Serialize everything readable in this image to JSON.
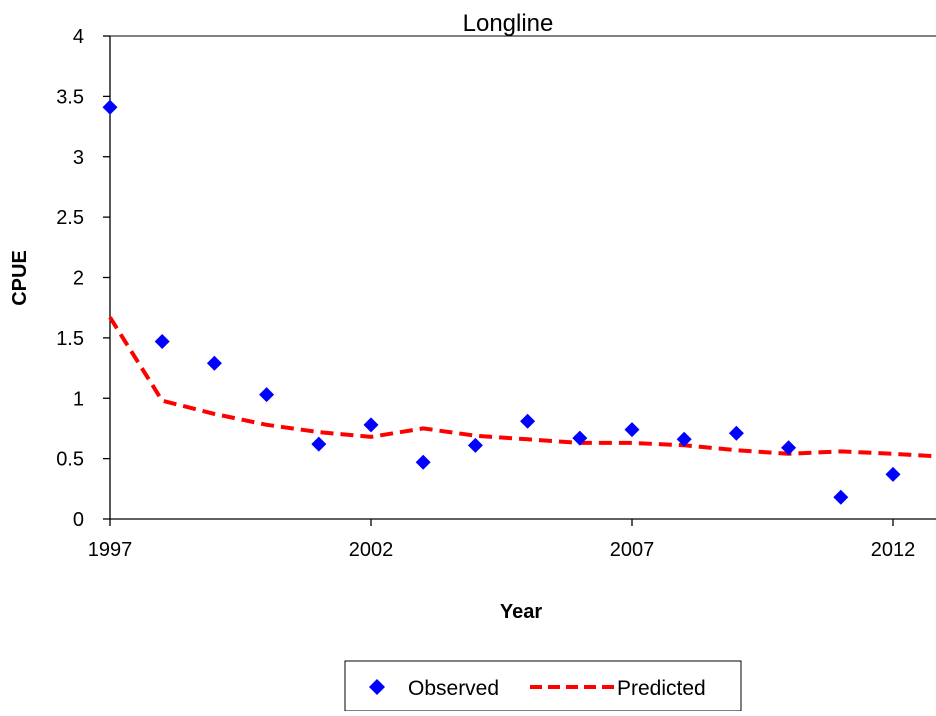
{
  "chart_data": {
    "type": "scatter",
    "title": "Longline",
    "xlabel": "Year",
    "ylabel": "CPUE",
    "xlim": [
      1997,
      2012.8
    ],
    "ylim": [
      0,
      4
    ],
    "x_ticks": [
      1997,
      2002,
      2007,
      2012
    ],
    "y_ticks": [
      0,
      0.5,
      1,
      1.5,
      2,
      2.5,
      3,
      3.5,
      4
    ],
    "y_tick_labels": [
      "0",
      "0.5",
      "1",
      "1.5",
      "2",
      "2.5",
      "3",
      "3.5",
      "4"
    ],
    "grid": false,
    "legend_position": "bottom",
    "series": [
      {
        "name": "Observed",
        "type": "scatter",
        "marker": "diamond",
        "color": "#0000FF",
        "x": [
          1997,
          1998,
          1999,
          2000,
          2001,
          2002,
          2003,
          2004,
          2005,
          2006,
          2007,
          2008,
          2009,
          2010,
          2011,
          2012
        ],
        "y": [
          3.41,
          1.47,
          1.29,
          1.03,
          0.62,
          0.78,
          0.47,
          0.61,
          0.81,
          0.67,
          0.74,
          0.66,
          0.71,
          0.59,
          0.18,
          0.37
        ]
      },
      {
        "name": "Predicted",
        "type": "line",
        "style": "dashed",
        "color": "#FF0000",
        "x": [
          1997,
          1998,
          1999,
          2000,
          2001,
          2002,
          2003,
          2004,
          2005,
          2006,
          2007,
          2008,
          2009,
          2010,
          2011,
          2012,
          2012.8
        ],
        "y": [
          1.67,
          0.98,
          0.87,
          0.78,
          0.72,
          0.68,
          0.75,
          0.69,
          0.66,
          0.63,
          0.63,
          0.61,
          0.57,
          0.54,
          0.56,
          0.54,
          0.52
        ]
      }
    ]
  }
}
